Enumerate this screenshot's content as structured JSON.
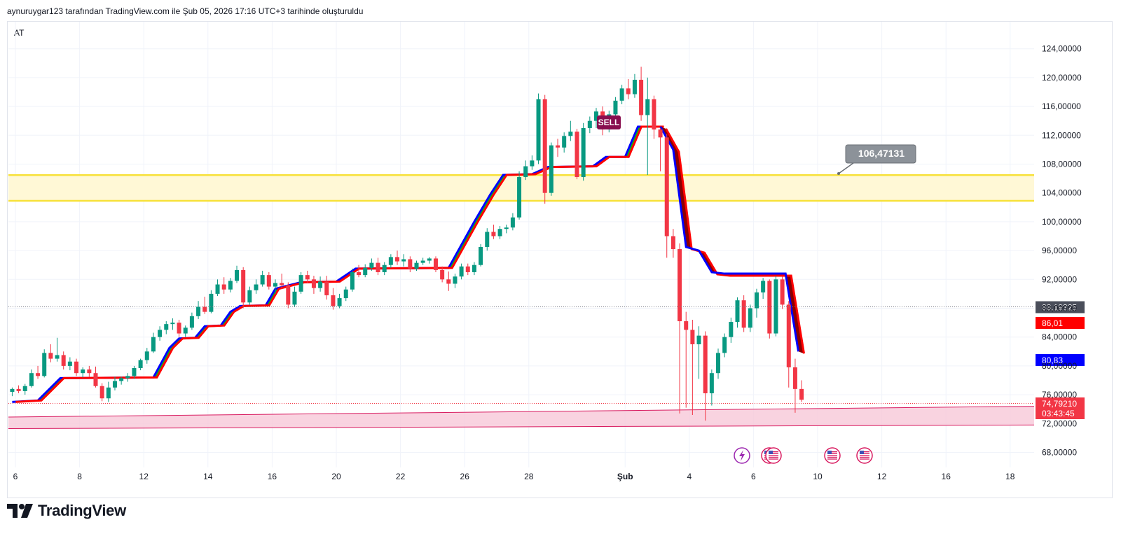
{
  "header": {
    "caption": "aynuruygar123 tarafından TradingView.com ile Şub 05, 2026 17:16 UTC+3 tarihinde oluşturuldu"
  },
  "symbol": "AT",
  "branding": {
    "name": "TradingView"
  },
  "colors": {
    "up": "#089981",
    "down": "#f23645",
    "support_fill": "#fff8d6",
    "support_line": "#f7e13a",
    "channel_fill": "#f8c8d8",
    "channel_line": "#d81b60",
    "trail_red": "#ff0000",
    "trail_blue": "#0000ff",
    "trail_green": "#00c800",
    "trail_dark": "#8b0000",
    "sell_bg": "#880e4f",
    "callout_bg": "#8c9299"
  },
  "icons": [
    "lightning-event-icon",
    "us-flag-event-icon",
    "us-flag-event-icon",
    "us-flag-event-icon",
    "us-flag-event-icon"
  ],
  "chart_data": {
    "type": "candlestick",
    "title": "",
    "xlabel": "",
    "ylabel": "",
    "ylim": [
      66,
      127
    ],
    "grid": true,
    "y_ticks": [
      "124,00000",
      "120,00000",
      "116,00000",
      "112,00000",
      "108,00000",
      "104,00000",
      "100,00000",
      "96,00000",
      "92,00000",
      "88,00000",
      "84,00000",
      "80,00000",
      "76,00000",
      "72,00000",
      "68,00000"
    ],
    "x_ticks": [
      {
        "label": "6",
        "day": 6
      },
      {
        "label": "8",
        "day": 8
      },
      {
        "label": "12",
        "day": 10
      },
      {
        "label": "14",
        "day": 12
      },
      {
        "label": "16",
        "day": 14
      },
      {
        "label": "20",
        "day": 16
      },
      {
        "label": "22",
        "day": 18
      },
      {
        "label": "26",
        "day": 20
      },
      {
        "label": "28",
        "day": 22
      },
      {
        "label": "Şub",
        "day": 25,
        "bold": true
      },
      {
        "label": "4",
        "day": 27
      },
      {
        "label": "6",
        "day": 29
      },
      {
        "label": "10",
        "day": 31
      },
      {
        "label": "12",
        "day": 33
      },
      {
        "label": "16",
        "day": 35
      },
      {
        "label": "18",
        "day": 37
      }
    ],
    "day_range": [
      5.8,
      38.5
    ],
    "candles": [
      [
        5.9,
        76.4,
        77.0,
        75.8,
        76.8
      ],
      [
        6.1,
        76.8,
        77.3,
        76.2,
        76.5
      ],
      [
        6.3,
        76.5,
        77.5,
        76.0,
        77.2
      ],
      [
        6.5,
        77.2,
        79.5,
        77.0,
        79.0
      ],
      [
        6.7,
        79.0,
        80.0,
        78.2,
        78.6
      ],
      [
        6.9,
        78.6,
        82.3,
        78.4,
        81.8
      ],
      [
        7.1,
        81.8,
        83.0,
        80.5,
        81.0
      ],
      [
        7.3,
        81.0,
        83.9,
        80.6,
        81.5
      ],
      [
        7.5,
        81.5,
        82.0,
        79.5,
        80.0
      ],
      [
        7.7,
        80.0,
        81.2,
        79.4,
        80.6
      ],
      [
        7.9,
        80.6,
        81.0,
        78.6,
        79.0
      ],
      [
        8.1,
        79.0,
        79.8,
        78.4,
        79.5
      ],
      [
        8.3,
        79.5,
        80.0,
        78.5,
        79.0
      ],
      [
        8.5,
        79.0,
        79.9,
        77.0,
        77.2
      ],
      [
        8.7,
        77.2,
        77.6,
        75.1,
        75.5
      ],
      [
        8.9,
        75.5,
        77.8,
        75.0,
        77.0
      ],
      [
        9.1,
        77.0,
        78.5,
        76.6,
        77.9
      ],
      [
        9.3,
        77.9,
        78.5,
        77.4,
        78.3
      ],
      [
        9.5,
        78.3,
        79.0,
        77.8,
        78.6
      ],
      [
        9.7,
        78.6,
        80.0,
        78.2,
        79.7
      ],
      [
        9.9,
        79.7,
        81.0,
        79.4,
        80.8
      ],
      [
        10.1,
        80.8,
        82.5,
        80.3,
        82.0
      ],
      [
        10.3,
        82.0,
        84.6,
        81.8,
        84.0
      ],
      [
        10.5,
        84.0,
        85.5,
        83.5,
        85.0
      ],
      [
        10.7,
        85.0,
        86.2,
        84.4,
        85.8
      ],
      [
        10.9,
        85.8,
        86.6,
        85.0,
        86.0
      ],
      [
        11.1,
        86.0,
        86.4,
        84.0,
        84.5
      ],
      [
        11.3,
        84.5,
        85.6,
        84.0,
        85.3
      ],
      [
        11.5,
        85.3,
        87.4,
        85.0,
        86.9
      ],
      [
        11.7,
        86.9,
        89.0,
        86.5,
        88.2
      ],
      [
        11.9,
        88.2,
        89.6,
        87.2,
        87.5
      ],
      [
        12.1,
        87.5,
        90.5,
        87.3,
        90.0
      ],
      [
        12.3,
        90.0,
        92.0,
        89.7,
        91.3
      ],
      [
        12.5,
        91.3,
        92.3,
        90.0,
        90.6
      ],
      [
        12.7,
        90.6,
        92.2,
        90.2,
        91.8
      ],
      [
        12.9,
        91.8,
        93.9,
        91.5,
        93.3
      ],
      [
        13.1,
        93.3,
        93.7,
        88.0,
        88.8
      ],
      [
        13.3,
        88.8,
        91.0,
        88.5,
        90.5
      ],
      [
        13.5,
        90.5,
        92.0,
        90.0,
        91.3
      ],
      [
        13.7,
        91.3,
        93.2,
        91.0,
        92.6
      ],
      [
        13.9,
        92.6,
        93.0,
        90.6,
        91.0
      ],
      [
        14.1,
        91.0,
        92.0,
        90.0,
        91.5
      ],
      [
        14.3,
        91.5,
        92.8,
        90.7,
        91.2
      ],
      [
        14.5,
        91.2,
        91.6,
        88.0,
        88.5
      ],
      [
        14.7,
        88.5,
        91.0,
        88.2,
        90.3
      ],
      [
        14.9,
        90.3,
        93.0,
        90.0,
        92.6
      ],
      [
        15.1,
        92.6,
        93.2,
        91.5,
        92.0
      ],
      [
        15.3,
        92.0,
        92.5,
        90.0,
        90.8
      ],
      [
        15.5,
        90.8,
        92.4,
        90.3,
        91.7
      ],
      [
        15.7,
        91.7,
        92.5,
        89.2,
        89.8
      ],
      [
        15.9,
        89.8,
        90.8,
        87.8,
        88.3
      ],
      [
        16.1,
        88.3,
        90.0,
        88.0,
        89.4
      ],
      [
        16.3,
        89.4,
        91.0,
        89.0,
        90.6
      ],
      [
        16.5,
        90.6,
        93.5,
        90.3,
        93.0
      ],
      [
        16.7,
        93.0,
        94.0,
        92.3,
        92.6
      ],
      [
        16.9,
        92.6,
        94.1,
        92.3,
        93.6
      ],
      [
        17.1,
        93.6,
        94.9,
        93.2,
        94.3
      ],
      [
        17.3,
        94.3,
        95.0,
        92.6,
        93.0
      ],
      [
        17.5,
        93.0,
        94.4,
        92.6,
        94.0
      ],
      [
        17.7,
        94.0,
        95.5,
        93.6,
        95.1
      ],
      [
        17.9,
        95.1,
        96.0,
        94.0,
        94.5
      ],
      [
        18.1,
        94.5,
        95.5,
        93.8,
        94.8
      ],
      [
        18.3,
        94.8,
        95.2,
        93.0,
        93.5
      ],
      [
        18.5,
        93.5,
        94.6,
        93.2,
        94.3
      ],
      [
        18.7,
        94.3,
        95.0,
        94.0,
        94.6
      ],
      [
        18.9,
        94.6,
        95.1,
        94.2,
        94.9
      ],
      [
        19.1,
        94.9,
        95.2,
        93.0,
        93.3
      ],
      [
        19.3,
        93.3,
        93.8,
        91.6,
        92.0
      ],
      [
        19.5,
        92.0,
        93.1,
        90.4,
        91.4
      ],
      [
        19.7,
        91.4,
        92.8,
        90.8,
        92.4
      ],
      [
        19.9,
        92.4,
        94.2,
        92.0,
        93.8
      ],
      [
        20.1,
        93.8,
        94.2,
        92.6,
        93.0
      ],
      [
        20.3,
        93.0,
        94.4,
        92.6,
        94.0
      ],
      [
        20.5,
        94.0,
        96.9,
        93.8,
        96.5
      ],
      [
        20.7,
        96.5,
        99.1,
        96.0,
        98.6
      ],
      [
        20.9,
        98.6,
        99.6,
        97.6,
        98.0
      ],
      [
        21.1,
        98.0,
        99.4,
        97.6,
        99.0
      ],
      [
        21.3,
        99.0,
        99.6,
        98.4,
        99.2
      ],
      [
        21.5,
        99.2,
        101.2,
        98.8,
        100.6
      ],
      [
        21.7,
        100.6,
        107.0,
        100.3,
        106.2
      ],
      [
        21.9,
        106.2,
        108.5,
        105.8,
        107.7
      ],
      [
        22.1,
        107.7,
        109.2,
        107.2,
        108.5
      ],
      [
        22.3,
        108.5,
        117.8,
        108.0,
        117.0
      ],
      [
        22.5,
        117.0,
        117.6,
        102.5,
        104.0
      ],
      [
        22.7,
        104.0,
        111.0,
        103.6,
        110.6
      ],
      [
        22.9,
        110.6,
        111.5,
        109.0,
        110.3
      ],
      [
        23.1,
        110.3,
        112.4,
        109.6,
        111.9
      ],
      [
        23.3,
        111.9,
        114.0,
        111.2,
        112.5
      ],
      [
        23.5,
        112.5,
        112.9,
        105.9,
        106.2
      ],
      [
        23.7,
        106.2,
        113.7,
        105.7,
        113.0
      ],
      [
        23.9,
        113.0,
        114.6,
        112.3,
        114.0
      ],
      [
        24.1,
        114.0,
        115.8,
        113.0,
        115.3
      ],
      [
        24.3,
        115.3,
        116.0,
        112.0,
        112.8
      ],
      [
        24.5,
        112.8,
        115.4,
        112.4,
        114.9
      ],
      [
        24.7,
        114.9,
        117.3,
        114.5,
        116.8
      ],
      [
        24.9,
        116.8,
        119.0,
        116.3,
        118.5
      ],
      [
        25.1,
        118.5,
        119.8,
        117.0,
        117.7
      ],
      [
        25.3,
        117.7,
        120.5,
        117.2,
        119.7
      ],
      [
        25.5,
        119.7,
        121.5,
        114.0,
        114.8
      ],
      [
        25.7,
        114.8,
        120.0,
        106.5,
        117.0
      ],
      [
        25.9,
        117.0,
        117.5,
        111.5,
        112.8
      ],
      [
        26.1,
        112.8,
        113.0,
        107.0,
        111.7
      ],
      [
        26.3,
        111.7,
        112.2,
        95.0,
        98.0
      ],
      [
        26.5,
        98.0,
        99.0,
        95.0,
        96.2
      ],
      [
        26.7,
        96.2,
        97.0,
        73.4,
        86.2
      ],
      [
        26.9,
        86.2,
        87.5,
        74.2,
        85.0
      ],
      [
        27.1,
        85.0,
        86.4,
        73.2,
        83.0
      ],
      [
        27.3,
        83.0,
        85.5,
        78.2,
        84.2
      ],
      [
        27.5,
        84.2,
        84.8,
        72.4,
        76.2
      ],
      [
        27.7,
        76.2,
        79.5,
        74.5,
        79.0
      ],
      [
        27.9,
        79.0,
        82.4,
        78.2,
        81.8
      ],
      [
        28.1,
        81.8,
        84.5,
        81.2,
        84.0
      ],
      [
        28.3,
        84.0,
        86.7,
        83.2,
        86.1
      ],
      [
        28.5,
        86.1,
        89.5,
        85.3,
        89.1
      ],
      [
        28.7,
        89.1,
        89.8,
        84.7,
        85.3
      ],
      [
        28.9,
        85.3,
        88.5,
        84.7,
        88.0
      ],
      [
        29.1,
        88.0,
        90.7,
        86.7,
        90.2
      ],
      [
        29.3,
        90.2,
        92.2,
        89.3,
        91.8
      ],
      [
        29.5,
        91.8,
        92.0,
        83.8,
        84.5
      ],
      [
        29.7,
        84.5,
        92.5,
        84.1,
        92.0
      ],
      [
        29.9,
        92.0,
        92.4,
        87.9,
        88.5
      ],
      [
        30.1,
        88.5,
        89.0,
        77.0,
        79.8
      ],
      [
        30.3,
        79.8,
        81.0,
        73.5,
        76.8
      ],
      [
        30.5,
        76.8,
        78.0,
        75.0,
        75.3
      ]
    ],
    "support_zone": {
      "top": 106.47,
      "bottom": 102.9
    },
    "channel": {
      "top_start": 72.9,
      "top_end": 74.4,
      "bottom_start": 71.3,
      "bottom_end": 71.8
    },
    "trail_band": [
      [
        5.9,
        75.0
      ],
      [
        6.7,
        75.2
      ],
      [
        7.4,
        78.3
      ],
      [
        10.3,
        78.4
      ],
      [
        10.8,
        82.5
      ],
      [
        11.1,
        83.8
      ],
      [
        11.6,
        83.9
      ],
      [
        11.9,
        85.5
      ],
      [
        12.4,
        85.6
      ],
      [
        12.7,
        87.5
      ],
      [
        13.0,
        88.3
      ],
      [
        13.8,
        88.4
      ],
      [
        14.1,
        90.7
      ],
      [
        14.9,
        91.6
      ],
      [
        16.0,
        91.7
      ],
      [
        16.6,
        93.5
      ],
      [
        19.5,
        93.6
      ],
      [
        19.8,
        96.0
      ],
      [
        20.3,
        100.0
      ],
      [
        20.8,
        103.8
      ],
      [
        21.2,
        106.5
      ],
      [
        22.1,
        106.6
      ],
      [
        22.6,
        107.6
      ],
      [
        24.0,
        107.7
      ],
      [
        24.4,
        109.0
      ],
      [
        25.0,
        109.0
      ],
      [
        25.4,
        113.2
      ],
      [
        26.1,
        113.2
      ]
    ],
    "trail_down": [
      [
        26.1,
        113.2
      ],
      [
        26.5,
        110.0
      ],
      [
        26.9,
        96.5
      ],
      [
        27.3,
        96.0
      ],
      [
        27.7,
        93.0
      ],
      [
        28.1,
        92.8
      ],
      [
        29.3,
        92.8
      ],
      [
        30.0,
        92.8
      ],
      [
        30.4,
        82.0
      ]
    ],
    "current_price": 88.19325,
    "last_price": 74.7921,
    "labels": {
      "sell": "SELL",
      "callout": "106,47131",
      "current_price_label": "88,19325",
      "red_trail_label": "86,01",
      "blue_trail_label": "80,83",
      "last_price_label": "74,79210",
      "countdown": "03:43:45"
    }
  }
}
